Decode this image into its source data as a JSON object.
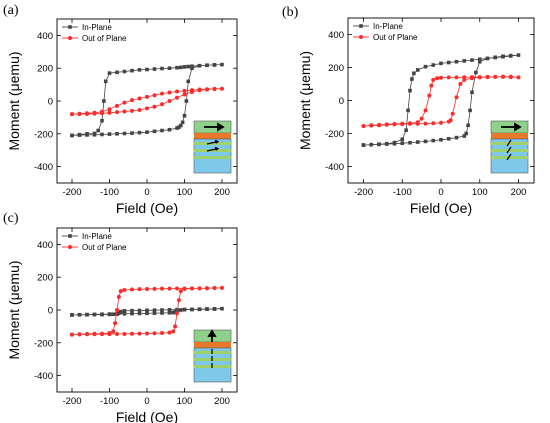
{
  "colors": {
    "in_plane": "#444444",
    "out_of_plane": "#ff2a2a",
    "inset_top_layer": "#8fd18a",
    "inset_orange_layer": "#e8782a",
    "inset_green_stripe": "#9fd06a",
    "inset_blue_layer": "#7ec8ea",
    "inset_arrow": "#000000"
  },
  "chart_data": [
    {
      "panel_label": "(a)",
      "type": "line",
      "xlabel": "Field (Oe)",
      "ylabel": "Moment (μemu)",
      "xlim": [
        -240,
        240
      ],
      "ylim": [
        -500,
        500
      ],
      "x_ticks": [
        -200,
        -100,
        0,
        100,
        200
      ],
      "y_ticks": [
        -400,
        -200,
        0,
        200,
        400
      ],
      "legend_position": "top-left",
      "inset": {
        "type": "layer-stack",
        "magnetization": "in-plane"
      },
      "series": [
        {
          "name": "In-Plane",
          "marker": "square",
          "color_key": "in_plane",
          "x": [
            -200,
            -180,
            -160,
            -140,
            -130,
            -120,
            -115,
            -110,
            -100,
            -80,
            -60,
            -40,
            -20,
            0,
            20,
            40,
            60,
            80,
            90,
            100,
            110,
            120,
            140,
            160,
            180,
            200,
            180,
            160,
            140,
            120,
            110,
            105,
            100,
            95,
            90,
            85,
            80,
            60,
            40,
            20,
            0,
            -20,
            -40,
            -60,
            -80,
            -100,
            -120,
            -140,
            -160,
            -180,
            -200
          ],
          "y": [
            -210,
            -205,
            -200,
            -198,
            -180,
            -120,
            0,
            120,
            170,
            175,
            180,
            185,
            190,
            192,
            195,
            198,
            200,
            203,
            205,
            208,
            210,
            212,
            215,
            218,
            220,
            222,
            220,
            218,
            215,
            200,
            120,
            0,
            -90,
            -130,
            -150,
            -160,
            -165,
            -175,
            -180,
            -185,
            -190,
            -193,
            -196,
            -198,
            -200,
            -202,
            -204,
            -206,
            -207,
            -208,
            -210
          ]
        },
        {
          "name": "Out of Plane",
          "marker": "circle",
          "color_key": "out_of_plane",
          "x": [
            -200,
            -180,
            -160,
            -140,
            -120,
            -100,
            -80,
            -60,
            -40,
            -20,
            0,
            20,
            40,
            60,
            80,
            100,
            120,
            140,
            160,
            180,
            200,
            180,
            160,
            140,
            120,
            100,
            80,
            60,
            40,
            20,
            0,
            -20,
            -40,
            -60,
            -80,
            -100,
            -120,
            -140,
            -160,
            -180,
            -200
          ],
          "y": [
            -80,
            -78,
            -75,
            -72,
            -65,
            -50,
            -30,
            -10,
            5,
            15,
            25,
            35,
            45,
            52,
            58,
            62,
            66,
            70,
            72,
            74,
            75,
            73,
            70,
            65,
            55,
            40,
            20,
            0,
            -20,
            -35,
            -45,
            -55,
            -60,
            -64,
            -68,
            -72,
            -75,
            -77,
            -79,
            -80,
            -80
          ]
        }
      ]
    },
    {
      "panel_label": "(b)",
      "type": "line",
      "xlabel": "Field (Oe)",
      "ylabel": "Moment (μemu)",
      "xlim": [
        -240,
        240
      ],
      "ylim": [
        -500,
        500
      ],
      "x_ticks": [
        -200,
        -100,
        0,
        100,
        200
      ],
      "y_ticks": [
        -400,
        -200,
        0,
        200,
        400
      ],
      "legend_position": "top-left",
      "inset": {
        "type": "layer-stack",
        "magnetization": "canted"
      },
      "series": [
        {
          "name": "In-Plane",
          "marker": "square",
          "color_key": "in_plane",
          "x": [
            -200,
            -180,
            -160,
            -140,
            -120,
            -100,
            -90,
            -85,
            -80,
            -75,
            -70,
            -60,
            -40,
            -20,
            0,
            20,
            40,
            60,
            80,
            100,
            120,
            140,
            160,
            180,
            200,
            180,
            160,
            140,
            120,
            100,
            90,
            80,
            75,
            70,
            65,
            60,
            40,
            20,
            0,
            -20,
            -40,
            -60,
            -80,
            -100,
            -120,
            -140,
            -160,
            -180,
            -200
          ],
          "y": [
            -270,
            -268,
            -265,
            -262,
            -255,
            -235,
            -180,
            -60,
            60,
            130,
            165,
            185,
            205,
            215,
            225,
            230,
            235,
            240,
            245,
            250,
            255,
            260,
            265,
            270,
            275,
            272,
            268,
            262,
            255,
            235,
            170,
            50,
            -60,
            -150,
            -200,
            -215,
            -225,
            -232,
            -238,
            -243,
            -248,
            -252,
            -256,
            -259,
            -262,
            -264,
            -266,
            -268,
            -270
          ]
        },
        {
          "name": "Out of Plane",
          "marker": "circle",
          "color_key": "out_of_plane",
          "x": [
            -200,
            -180,
            -160,
            -140,
            -120,
            -100,
            -80,
            -60,
            -50,
            -40,
            -30,
            -25,
            -20,
            -10,
            0,
            20,
            40,
            60,
            80,
            100,
            120,
            140,
            160,
            180,
            200,
            180,
            160,
            140,
            120,
            100,
            80,
            60,
            50,
            40,
            30,
            25,
            20,
            0,
            -20,
            -40,
            -60,
            -80,
            -100,
            -120,
            -140,
            -160,
            -180,
            -200
          ],
          "y": [
            -155,
            -150,
            -148,
            -145,
            -142,
            -140,
            -138,
            -132,
            -110,
            -60,
            30,
            90,
            125,
            135,
            138,
            140,
            140,
            141,
            142,
            142,
            143,
            143,
            145,
            145,
            140,
            142,
            143,
            143,
            142,
            140,
            135,
            125,
            100,
            20,
            -80,
            -120,
            -128,
            -135,
            -138,
            -140,
            -141,
            -142,
            -143,
            -145,
            -147,
            -150,
            -152,
            -155
          ]
        }
      ]
    },
    {
      "panel_label": "(c)",
      "type": "line",
      "xlabel": "Field (Oe)",
      "ylabel": "Moment (μemu)",
      "xlim": [
        -240,
        240
      ],
      "ylim": [
        -500,
        500
      ],
      "x_ticks": [
        -200,
        -100,
        0,
        100,
        200
      ],
      "y_ticks": [
        -400,
        -200,
        0,
        200,
        400
      ],
      "legend_position": "top-left",
      "inset": {
        "type": "layer-stack",
        "magnetization": "perpendicular"
      },
      "series": [
        {
          "name": "In-Plane",
          "marker": "square",
          "color_key": "in_plane",
          "x": [
            -200,
            -180,
            -160,
            -140,
            -120,
            -100,
            -80,
            -60,
            -40,
            -20,
            0,
            20,
            40,
            60,
            70,
            75,
            80,
            90,
            100,
            120,
            140,
            160,
            180,
            200,
            180,
            160,
            140,
            120,
            100,
            80,
            60,
            40,
            20,
            0,
            -20,
            -40,
            -60,
            -70,
            -75,
            -80,
            -90,
            -100,
            -120,
            -140,
            -160,
            -180,
            -200
          ],
          "y": [
            -30,
            -29,
            -28,
            -27,
            -26,
            -25,
            -24,
            -23,
            -22,
            -21,
            -20,
            -19,
            -18,
            -17,
            -16,
            -12,
            -5,
            0,
            2,
            3,
            4,
            5,
            6,
            8,
            7,
            6,
            5,
            4,
            3,
            2,
            1,
            0,
            -1,
            -2,
            -3,
            -4,
            -5,
            -10,
            -20,
            -25,
            -26,
            -27,
            -28,
            -28,
            -29,
            -29,
            -30
          ]
        },
        {
          "name": "Out of Plane",
          "marker": "circle",
          "color_key": "out_of_plane",
          "x": [
            -200,
            -180,
            -160,
            -140,
            -120,
            -100,
            -90,
            -85,
            -80,
            -75,
            -70,
            -60,
            -40,
            -20,
            0,
            20,
            40,
            60,
            80,
            100,
            120,
            140,
            160,
            180,
            200,
            180,
            160,
            140,
            120,
            100,
            90,
            85,
            80,
            75,
            70,
            60,
            40,
            20,
            0,
            -20,
            -40,
            -60,
            -80,
            -100,
            -120,
            -140,
            -160,
            -180,
            -200
          ],
          "y": [
            -150,
            -148,
            -146,
            -145,
            -144,
            -140,
            -130,
            -80,
            0,
            80,
            115,
            122,
            125,
            127,
            128,
            129,
            130,
            130,
            131,
            131,
            132,
            132,
            133,
            134,
            135,
            134,
            133,
            132,
            131,
            128,
            115,
            60,
            -20,
            -100,
            -130,
            -138,
            -140,
            -142,
            -143,
            -144,
            -145,
            -146,
            -146,
            -147,
            -147,
            -148,
            -148,
            -149,
            -150
          ]
        }
      ]
    }
  ]
}
